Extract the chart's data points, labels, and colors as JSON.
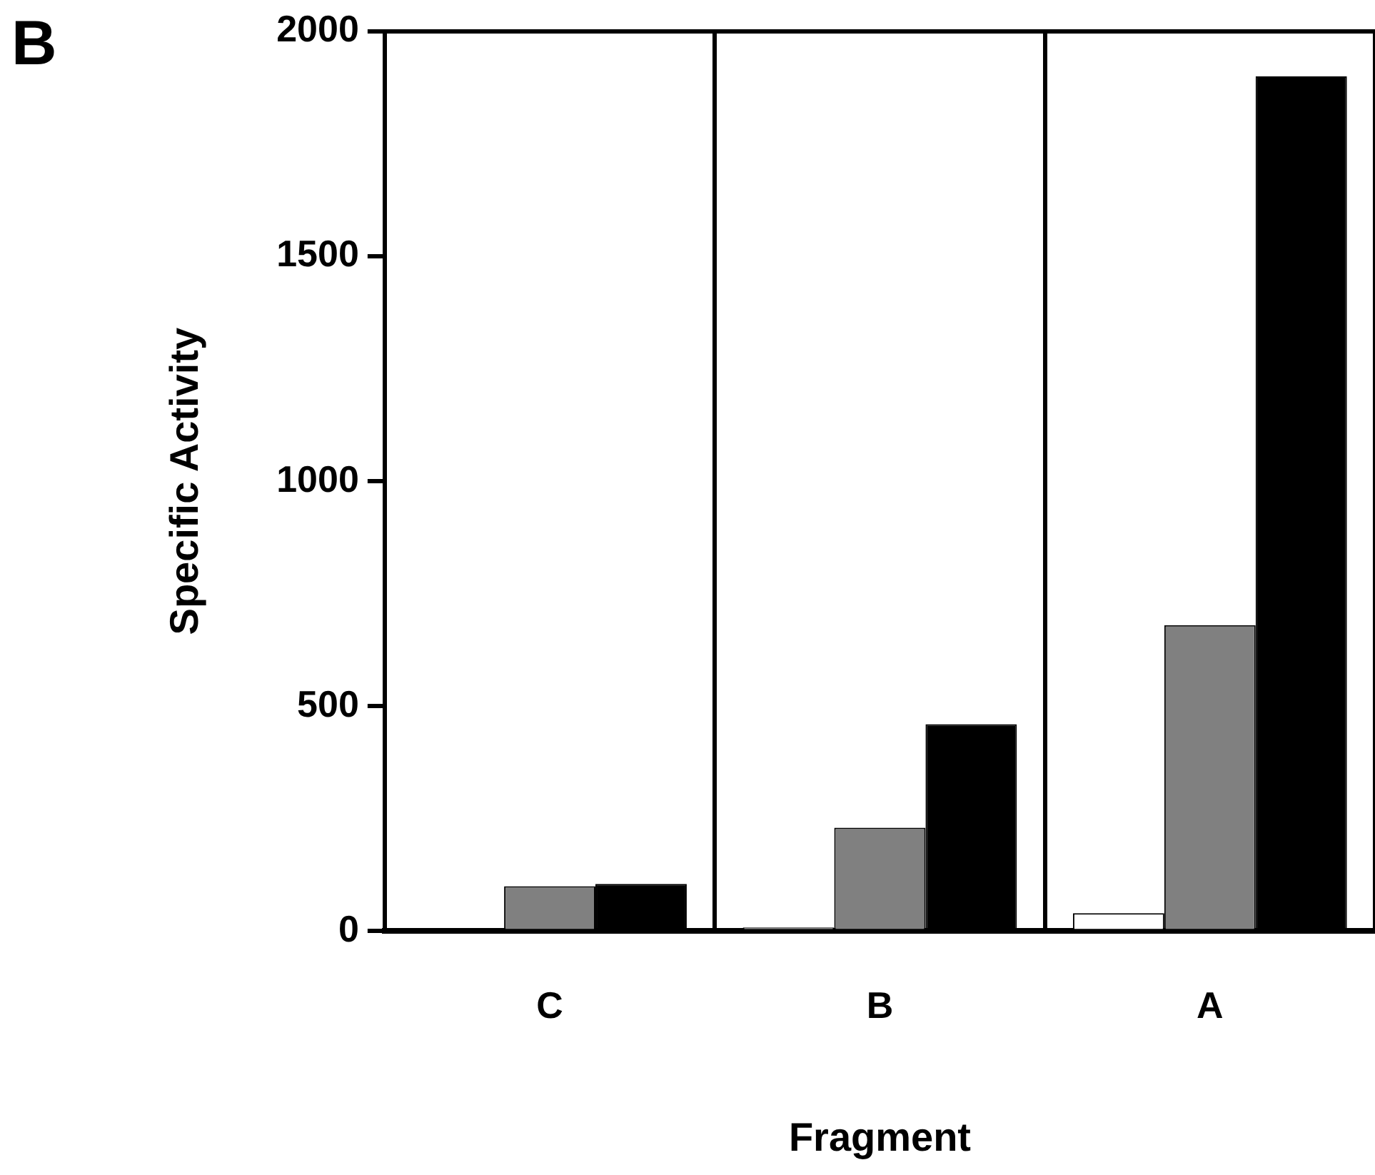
{
  "chart_data": {
    "type": "bar",
    "xlabel": "Fragment",
    "ylabel": "Specific Activity",
    "annotations": [
      "B"
    ],
    "categories": [
      "C",
      "B",
      "A"
    ],
    "series": [
      {
        "color": "#ffffff",
        "values": [
          0,
          8,
          40
        ]
      },
      {
        "color": "#808080",
        "values": [
          100,
          230,
          680
        ]
      },
      {
        "color": "#000000",
        "values": [
          105,
          460,
          1900
        ]
      }
    ],
    "ylim": [
      0,
      2000
    ],
    "yticks": [
      0,
      500,
      1000,
      1500,
      2000
    ],
    "grid": "x",
    "legend": false
  }
}
